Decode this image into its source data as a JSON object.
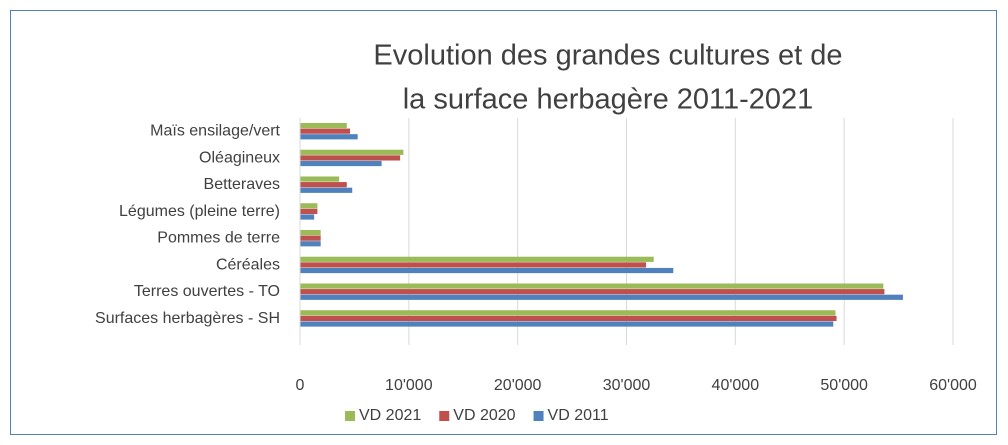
{
  "chart_data": {
    "type": "hbar",
    "title": [
      "Evolution des grandes cultures et de",
      "la surface herbagère 2011-2021"
    ],
    "categories": [
      "Maïs ensilage/vert",
      "Oléagineux",
      "Betteraves",
      "Légumes (pleine terre)",
      "Pommes de terre",
      "Céréales",
      "Terres ouvertes - TO",
      "Surfaces herbagères - SH"
    ],
    "series": [
      {
        "name": "VD 2021",
        "color": "#9bbb59",
        "values": [
          4300,
          9500,
          3600,
          1600,
          1900,
          32500,
          53600,
          49200
        ]
      },
      {
        "name": "VD 2020",
        "color": "#c0504d",
        "values": [
          4600,
          9200,
          4300,
          1600,
          1900,
          31800,
          53700,
          49300
        ]
      },
      {
        "name": "VD 2011",
        "color": "#4f81bd",
        "values": [
          5300,
          7500,
          4800,
          1300,
          1900,
          34300,
          55400,
          49000
        ]
      }
    ],
    "xlim": [
      0,
      60000
    ],
    "xticks": [
      0,
      {
        "value": 10000,
        "label": "10'000"
      },
      {
        "value": 20000,
        "label": "20'000"
      },
      {
        "value": 30000,
        "label": "30'000"
      },
      {
        "value": 40000,
        "label": "40'000"
      },
      {
        "value": 50000,
        "label": "50'000"
      },
      {
        "value": 60000,
        "label": "60'000"
      }
    ],
    "grid": true,
    "legend": "bottom"
  }
}
